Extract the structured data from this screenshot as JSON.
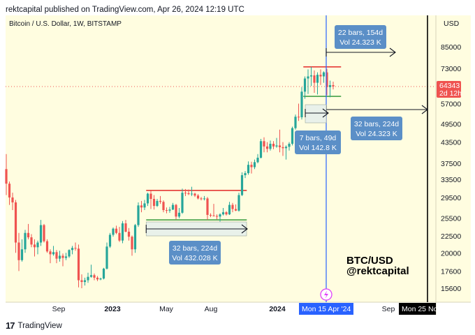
{
  "header": {
    "published_line": "rektcapital published on TradingView.com, Apr 26, 2024 12:19 UTC"
  },
  "footer": {
    "brand": "TradingView",
    "logo_glyph": "17"
  },
  "colors": {
    "background": "#fffde0",
    "up": "#26a69a",
    "down": "#ef5350",
    "resistance": "#e53935",
    "support": "#43a047",
    "halving_line": "#2962ff",
    "label_box": "#5b8fc7",
    "price_tag": "#ef5350"
  },
  "chart_data": {
    "type": "candlestick",
    "title": "Bitcoin / U.S. Dollar, 1W, BITSTAMP",
    "y_scale": "log",
    "ylim": [
      14000,
      110000
    ],
    "currency_label": "USD",
    "y_ticks": [
      "85000",
      "73000",
      "64343",
      "57000",
      "49500",
      "43500",
      "37500",
      "33500",
      "29500",
      "25500",
      "22500",
      "20000",
      "17600",
      "15600"
    ],
    "x_ticks": [
      "Sep",
      "2023",
      "May",
      "Aug",
      "2024",
      "Sep"
    ],
    "bold_x_ticks": [
      "2023",
      "2024"
    ],
    "current_price": {
      "value": "64343",
      "countdown": "2d 12h"
    },
    "candles": [
      {
        "o": 36000,
        "h": 40000,
        "l": 30000,
        "c": 32500
      },
      {
        "o": 32500,
        "h": 33000,
        "l": 28000,
        "c": 29500
      },
      {
        "o": 29500,
        "h": 30500,
        "l": 27000,
        "c": 28500
      },
      {
        "o": 28500,
        "h": 29000,
        "l": 20000,
        "c": 21500
      },
      {
        "o": 21500,
        "h": 23000,
        "l": 17600,
        "c": 19000
      },
      {
        "o": 19000,
        "h": 22000,
        "l": 18800,
        "c": 20500
      },
      {
        "o": 20500,
        "h": 23500,
        "l": 20000,
        "c": 23000
      },
      {
        "o": 23000,
        "h": 24500,
        "l": 22000,
        "c": 22300
      },
      {
        "o": 22300,
        "h": 22800,
        "l": 20800,
        "c": 21200
      },
      {
        "o": 21200,
        "h": 22000,
        "l": 19500,
        "c": 20800
      },
      {
        "o": 20800,
        "h": 21800,
        "l": 19800,
        "c": 21500
      },
      {
        "o": 21500,
        "h": 25200,
        "l": 21000,
        "c": 24300
      },
      {
        "o": 24300,
        "h": 24500,
        "l": 21500,
        "c": 21700
      },
      {
        "o": 21700,
        "h": 22000,
        "l": 20000,
        "c": 20200
      },
      {
        "o": 20200,
        "h": 20500,
        "l": 18600,
        "c": 19800
      },
      {
        "o": 19800,
        "h": 21000,
        "l": 19600,
        "c": 20100
      },
      {
        "o": 20100,
        "h": 20400,
        "l": 18600,
        "c": 19200
      },
      {
        "o": 19200,
        "h": 20300,
        "l": 18800,
        "c": 19600
      },
      {
        "o": 19600,
        "h": 19900,
        "l": 18200,
        "c": 19300
      },
      {
        "o": 19300,
        "h": 20000,
        "l": 19000,
        "c": 19500
      },
      {
        "o": 19500,
        "h": 20500,
        "l": 19300,
        "c": 20400
      },
      {
        "o": 20400,
        "h": 21000,
        "l": 19800,
        "c": 20700
      },
      {
        "o": 20700,
        "h": 21500,
        "l": 20300,
        "c": 20600
      },
      {
        "o": 20600,
        "h": 21200,
        "l": 15700,
        "c": 16500
      },
      {
        "o": 16500,
        "h": 17200,
        "l": 15600,
        "c": 16300
      },
      {
        "o": 16300,
        "h": 16800,
        "l": 15900,
        "c": 16500
      },
      {
        "o": 16500,
        "h": 17400,
        "l": 16200,
        "c": 16900
      },
      {
        "o": 16900,
        "h": 18400,
        "l": 16800,
        "c": 17100
      },
      {
        "o": 17100,
        "h": 17300,
        "l": 16500,
        "c": 16800
      },
      {
        "o": 16800,
        "h": 17000,
        "l": 16400,
        "c": 16600
      },
      {
        "o": 16600,
        "h": 16800,
        "l": 16500,
        "c": 16700
      },
      {
        "o": 16700,
        "h": 18000,
        "l": 16600,
        "c": 17900
      },
      {
        "o": 17900,
        "h": 21500,
        "l": 17800,
        "c": 20900
      },
      {
        "o": 20900,
        "h": 23000,
        "l": 20700,
        "c": 22700
      },
      {
        "o": 22700,
        "h": 23900,
        "l": 22400,
        "c": 23700
      },
      {
        "o": 23700,
        "h": 24200,
        "l": 22800,
        "c": 23000
      },
      {
        "o": 23000,
        "h": 24000,
        "l": 21600,
        "c": 21800
      },
      {
        "o": 21800,
        "h": 25000,
        "l": 21400,
        "c": 24600
      },
      {
        "o": 24600,
        "h": 25200,
        "l": 23100,
        "c": 23200
      },
      {
        "o": 23200,
        "h": 23800,
        "l": 21800,
        "c": 22400
      },
      {
        "o": 22400,
        "h": 22600,
        "l": 19600,
        "c": 20500
      },
      {
        "o": 20500,
        "h": 24500,
        "l": 20000,
        "c": 24300
      },
      {
        "o": 24300,
        "h": 28500,
        "l": 24000,
        "c": 27900
      },
      {
        "o": 27900,
        "h": 28800,
        "l": 26600,
        "c": 27500
      },
      {
        "o": 27500,
        "h": 29000,
        "l": 27000,
        "c": 28300
      },
      {
        "o": 28300,
        "h": 30500,
        "l": 27800,
        "c": 30300
      },
      {
        "o": 30300,
        "h": 31000,
        "l": 27200,
        "c": 29200
      },
      {
        "o": 29200,
        "h": 30000,
        "l": 27100,
        "c": 27800
      },
      {
        "o": 27800,
        "h": 29200,
        "l": 27600,
        "c": 28800
      },
      {
        "o": 28800,
        "h": 29800,
        "l": 28200,
        "c": 28600
      },
      {
        "o": 28600,
        "h": 28900,
        "l": 26600,
        "c": 27000
      },
      {
        "o": 27000,
        "h": 27500,
        "l": 26400,
        "c": 26900
      },
      {
        "o": 26900,
        "h": 27600,
        "l": 26500,
        "c": 27100
      },
      {
        "o": 27100,
        "h": 28400,
        "l": 27000,
        "c": 28000
      },
      {
        "o": 28000,
        "h": 28200,
        "l": 25300,
        "c": 25800
      },
      {
        "o": 25800,
        "h": 27400,
        "l": 25500,
        "c": 26500
      },
      {
        "o": 26500,
        "h": 31400,
        "l": 26300,
        "c": 30500
      },
      {
        "o": 30500,
        "h": 31300,
        "l": 29800,
        "c": 30400
      },
      {
        "o": 30400,
        "h": 31200,
        "l": 30000,
        "c": 30200
      },
      {
        "o": 30200,
        "h": 31800,
        "l": 29800,
        "c": 30300
      },
      {
        "o": 30300,
        "h": 30500,
        "l": 29600,
        "c": 29900
      },
      {
        "o": 29900,
        "h": 30200,
        "l": 29100,
        "c": 29300
      },
      {
        "o": 29300,
        "h": 29600,
        "l": 28900,
        "c": 29200
      },
      {
        "o": 29200,
        "h": 29800,
        "l": 28900,
        "c": 29300
      },
      {
        "o": 29300,
        "h": 29600,
        "l": 25200,
        "c": 26100
      },
      {
        "o": 26100,
        "h": 26400,
        "l": 25700,
        "c": 26000
      },
      {
        "o": 26000,
        "h": 28200,
        "l": 25800,
        "c": 25900
      },
      {
        "o": 25900,
        "h": 26200,
        "l": 25300,
        "c": 25800
      },
      {
        "o": 25800,
        "h": 26400,
        "l": 24900,
        "c": 26200
      },
      {
        "o": 26200,
        "h": 27400,
        "l": 26000,
        "c": 26600
      },
      {
        "o": 26600,
        "h": 26800,
        "l": 26000,
        "c": 26200
      },
      {
        "o": 26200,
        "h": 28600,
        "l": 26100,
        "c": 28000
      },
      {
        "o": 28000,
        "h": 28400,
        "l": 26600,
        "c": 27200
      },
      {
        "o": 27200,
        "h": 28100,
        "l": 26800,
        "c": 26900
      },
      {
        "o": 26900,
        "h": 30500,
        "l": 26700,
        "c": 30000
      },
      {
        "o": 30000,
        "h": 35200,
        "l": 29800,
        "c": 34500
      },
      {
        "o": 34500,
        "h": 35500,
        "l": 33800,
        "c": 35000
      },
      {
        "o": 35000,
        "h": 38000,
        "l": 34600,
        "c": 37100
      },
      {
        "o": 37100,
        "h": 37900,
        "l": 34900,
        "c": 36500
      },
      {
        "o": 36500,
        "h": 38500,
        "l": 36000,
        "c": 37800
      },
      {
        "o": 37800,
        "h": 40000,
        "l": 37500,
        "c": 39000
      },
      {
        "o": 39000,
        "h": 44500,
        "l": 38800,
        "c": 43800
      },
      {
        "o": 43800,
        "h": 45000,
        "l": 40500,
        "c": 42200
      },
      {
        "o": 42200,
        "h": 43500,
        "l": 40500,
        "c": 41500
      },
      {
        "o": 41500,
        "h": 44000,
        "l": 41000,
        "c": 43000
      },
      {
        "o": 43000,
        "h": 43800,
        "l": 41400,
        "c": 42200
      },
      {
        "o": 42200,
        "h": 44800,
        "l": 41800,
        "c": 42500
      },
      {
        "o": 42500,
        "h": 47500,
        "l": 40500,
        "c": 42000
      },
      {
        "o": 42000,
        "h": 43500,
        "l": 39500,
        "c": 41700
      },
      {
        "o": 41700,
        "h": 42500,
        "l": 38500,
        "c": 42100
      },
      {
        "o": 42100,
        "h": 43500,
        "l": 41000,
        "c": 43000
      },
      {
        "o": 43000,
        "h": 48500,
        "l": 42500,
        "c": 48000
      },
      {
        "o": 48000,
        "h": 52800,
        "l": 47500,
        "c": 52000
      },
      {
        "o": 52000,
        "h": 57000,
        "l": 50500,
        "c": 51800
      },
      {
        "o": 51800,
        "h": 64000,
        "l": 51000,
        "c": 62000
      },
      {
        "o": 62000,
        "h": 69000,
        "l": 59000,
        "c": 68000
      },
      {
        "o": 68000,
        "h": 72500,
        "l": 61000,
        "c": 69000
      },
      {
        "o": 69000,
        "h": 73800,
        "l": 64500,
        "c": 69500
      },
      {
        "o": 69500,
        "h": 72000,
        "l": 61500,
        "c": 66000
      },
      {
        "o": 66000,
        "h": 71000,
        "l": 60800,
        "c": 69800
      },
      {
        "o": 69800,
        "h": 72500,
        "l": 65000,
        "c": 69000
      },
      {
        "o": 69000,
        "h": 71500,
        "l": 66000,
        "c": 71000
      },
      {
        "o": 71000,
        "h": 72800,
        "l": 60500,
        "c": 64000
      },
      {
        "o": 64000,
        "h": 67000,
        "l": 59600,
        "c": 64900
      },
      {
        "o": 64900,
        "h": 66500,
        "l": 63000,
        "c": 64343
      }
    ],
    "ranges": [
      {
        "low": 25200,
        "high": 31000,
        "label_lines": [
          "32 bars, 224d",
          "Vol 432.028 K"
        ]
      },
      {
        "low": 60000,
        "high": 73800,
        "label_lines": [
          "22 bars, 154d",
          "Vol 24.323 K"
        ]
      }
    ],
    "measurements": [
      {
        "label_lines": [
          "32 bars, 224d",
          "Vol 24.323 K"
        ]
      },
      {
        "label_lines": [
          "7 bars, 49d",
          "Vol 142.8 K"
        ]
      }
    ],
    "halving": {
      "date_label": "Mon 15 Apr '24"
    },
    "projection": {
      "date_label": "Mon 25 No"
    },
    "annotation_lines": [
      "BTC/USD",
      "@rektcapital"
    ]
  }
}
